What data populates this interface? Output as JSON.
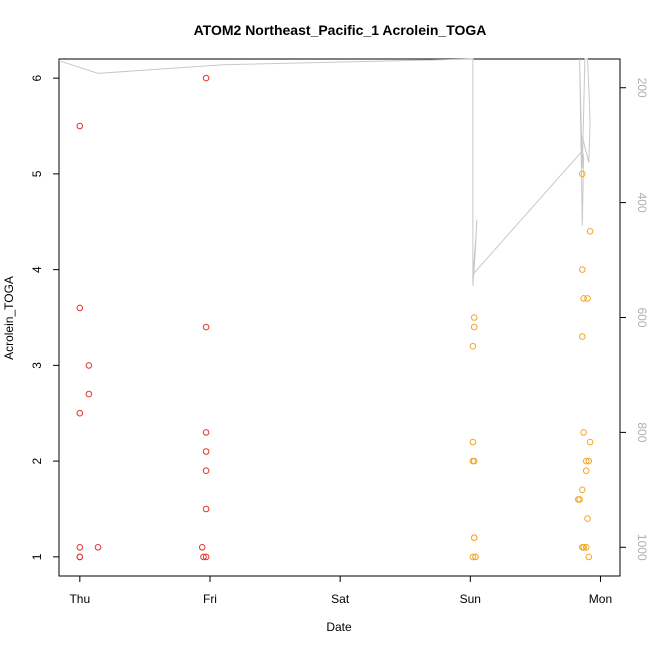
{
  "chart_data": {
    "type": "scatter",
    "title": "ATOM2 Northeast_Pacific_1 Acrolein_TOGA",
    "xlabel": "Date",
    "ylabel": "Acrolein_TOGA",
    "x_ticks": [
      "Thu",
      "Fri",
      "Sat",
      "Sun",
      "Mon"
    ],
    "x_unit": "days since Thu 00:00",
    "xlim": [
      -0.16,
      4.15
    ],
    "ylim": [
      0.8,
      6.2
    ],
    "y_ticks": [
      1,
      2,
      3,
      4,
      5,
      6
    ],
    "y2_ticks": [
      200,
      400,
      600,
      800,
      1000
    ],
    "y2lim": [
      1050,
      150
    ],
    "grid": false,
    "legend": "none",
    "colors": {
      "series_red": "#e8302a",
      "series_orange": "#f5a623",
      "pressure_line": "#c8c8c8"
    },
    "series": [
      {
        "color": "#e8302a",
        "x": [
          0.0,
          0.0,
          0.0,
          0.07,
          0.07,
          0.0,
          0.0,
          0.0,
          0.14,
          0.94,
          0.97,
          0.97,
          0.97,
          0.97,
          0.97,
          0.97,
          0.97,
          0.95
        ],
        "y": [
          5.5,
          3.6,
          2.5,
          3.0,
          2.7,
          1.1,
          1.0,
          1.0,
          1.1,
          1.1,
          6.0,
          3.4,
          2.3,
          2.1,
          1.9,
          1.5,
          1.0,
          1.0
        ]
      },
      {
        "color": "#f5a623",
        "x": [
          3.02,
          3.03,
          3.03,
          3.04,
          3.02,
          3.02,
          3.03,
          3.03,
          3.02,
          3.04,
          3.03,
          3.86,
          3.86,
          3.87,
          3.9,
          3.86,
          3.86,
          3.87,
          3.89,
          3.91,
          3.92,
          3.89,
          3.92,
          3.87,
          3.9,
          3.89,
          3.83,
          3.84,
          3.86,
          3.87,
          3.91
        ],
        "y": [
          3.2,
          3.4,
          3.5,
          1.0,
          2.2,
          2.0,
          1.2,
          1.2,
          1.0,
          1.0,
          2.0,
          5.0,
          4.0,
          3.7,
          3.7,
          3.3,
          1.7,
          2.3,
          2.0,
          2.0,
          4.4,
          1.9,
          2.2,
          1.1,
          1.4,
          1.1,
          1.6,
          1.6,
          1.1,
          1.1,
          1.0
        ]
      }
    ],
    "pressure_series": {
      "color": "#c8c8c8",
      "x": [
        -0.2,
        0.14,
        1.1,
        3.02,
        3.02,
        3.02,
        3.04,
        3.05,
        3.04,
        3.02,
        3.86,
        3.87,
        3.86,
        3.84,
        3.86,
        3.88,
        3.9,
        3.91,
        3.92,
        3.91,
        3.86,
        3.86
      ],
      "y": [
        153,
        175,
        160,
        140,
        520,
        545,
        480,
        430,
        470,
        525,
        310,
        320,
        440,
        150,
        340,
        120,
        150,
        200,
        260,
        330,
        285,
        290
      ]
    }
  }
}
